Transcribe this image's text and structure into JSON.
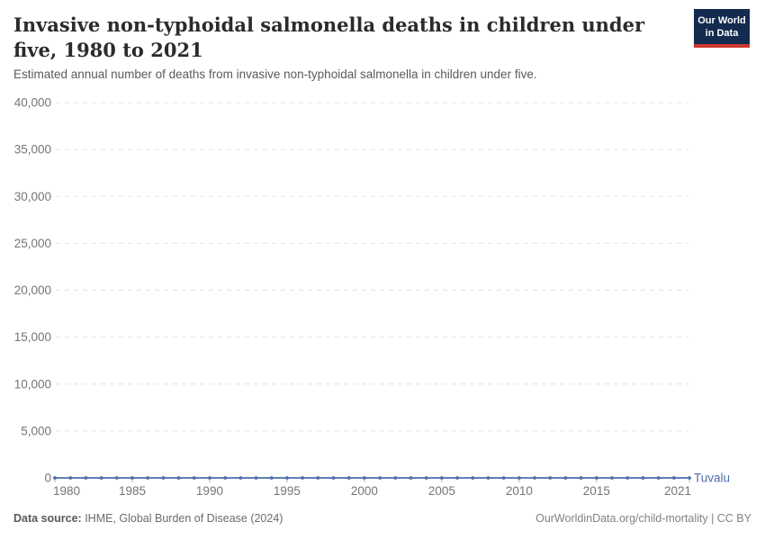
{
  "header": {
    "title": "Invasive non-typhoidal salmonella deaths in children under five, 1980 to 2021",
    "subtitle": "Estimated annual number of deaths from invasive non-typhoidal salmonella in children under five.",
    "logo": {
      "line1": "Our World",
      "line2": "in Data"
    }
  },
  "chart_data": {
    "type": "line",
    "title": "Invasive non-typhoidal salmonella deaths in children under five, 1980 to 2021",
    "xlabel": "",
    "ylabel": "",
    "xlim": [
      1980,
      2021
    ],
    "ylim": [
      0,
      40000
    ],
    "yticks": [
      0,
      5000,
      10000,
      15000,
      20000,
      25000,
      30000,
      35000,
      40000
    ],
    "xticks": [
      1980,
      1985,
      1990,
      1995,
      2000,
      2005,
      2010,
      2015,
      2021
    ],
    "grid": "horizontal-dashed",
    "legend_position": "end-of-line-label",
    "series": [
      {
        "name": "Tuvalu",
        "color": "#4c6da8",
        "x": [
          1980,
          1981,
          1982,
          1983,
          1984,
          1985,
          1986,
          1987,
          1988,
          1989,
          1990,
          1991,
          1992,
          1993,
          1994,
          1995,
          1996,
          1997,
          1998,
          1999,
          2000,
          2001,
          2002,
          2003,
          2004,
          2005,
          2006,
          2007,
          2008,
          2009,
          2010,
          2011,
          2012,
          2013,
          2014,
          2015,
          2016,
          2017,
          2018,
          2019,
          2020,
          2021
        ],
        "values": [
          0,
          0,
          0,
          0,
          0,
          0,
          0,
          0,
          0,
          0,
          0,
          0,
          0,
          0,
          0,
          0,
          0,
          0,
          0,
          0,
          0,
          0,
          0,
          0,
          0,
          0,
          0,
          0,
          0,
          0,
          0,
          0,
          0,
          0,
          0,
          0,
          0,
          0,
          0,
          0,
          0,
          0
        ]
      }
    ]
  },
  "footer": {
    "datasource_label": "Data source:",
    "datasource_text": " IHME, Global Burden of Disease (2024)",
    "link": "OurWorldinData.org/child-mortality | CC BY"
  },
  "colors": {
    "line": "#4c6da8",
    "grid": "#e2e2e2",
    "axis_text": "#757575",
    "tick_mark": "#b0b0b0",
    "title": "#2b2b2b",
    "subtitle": "#5a5a5a",
    "logo_bg": "#132b4e",
    "logo_red": "#d0372e"
  }
}
